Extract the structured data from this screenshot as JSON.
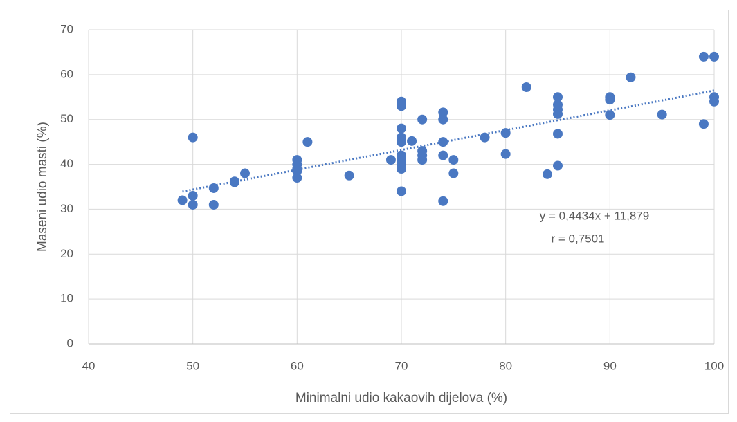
{
  "chart_data": {
    "type": "scatter",
    "x_label": "Minimalni udio kakaovih dijelova (%)",
    "y_label": "Maseni udio masti (%)",
    "annotations": [
      "y = 0,4434x + 11,879",
      "r = 0,7501"
    ],
    "color": "#4a78c2",
    "trendline": true,
    "grid": true,
    "xlim": [
      40,
      100
    ],
    "xticks": [
      40,
      50,
      60,
      70,
      80,
      90,
      100
    ],
    "ylim": [
      0,
      70
    ],
    "yticks": [
      0,
      10,
      20,
      30,
      40,
      50,
      60,
      70
    ],
    "x": [
      49,
      50,
      50,
      50,
      52,
      52,
      54,
      54,
      55,
      60,
      60,
      60,
      60,
      60,
      61,
      65,
      69,
      70,
      70,
      70,
      70,
      70,
      70,
      70,
      70,
      70,
      70,
      71,
      72,
      72,
      72,
      72,
      74,
      74,
      74,
      74,
      74,
      75,
      75,
      78,
      80,
      80,
      82,
      84,
      85,
      85,
      85,
      85,
      85,
      85,
      90,
      90,
      90,
      92,
      95,
      99,
      99,
      100,
      100,
      100
    ],
    "values": [
      32,
      46,
      33,
      31,
      34.7,
      31,
      36.2,
      36,
      38,
      41,
      40,
      39,
      38.5,
      37,
      45,
      37.5,
      41,
      54,
      53,
      48,
      46,
      45,
      42,
      41,
      40,
      39,
      34,
      45.2,
      50,
      43,
      42,
      41,
      51.6,
      50,
      45,
      42,
      31.8,
      41,
      38,
      46,
      47,
      42.3,
      57.2,
      37.8,
      55,
      53.3,
      52.2,
      51.2,
      46.8,
      39.7,
      55,
      54.4,
      51,
      59.4,
      51.1,
      64,
      49,
      64,
      55,
      54
    ]
  }
}
